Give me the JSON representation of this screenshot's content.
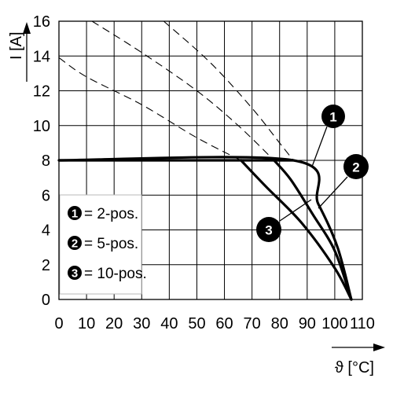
{
  "chart_data": {
    "type": "line",
    "xlabel": "ϑ [°C]",
    "ylabel": "I [A]",
    "xlim": [
      0,
      110
    ],
    "ylim": [
      0,
      16
    ],
    "x_ticks": [
      "0",
      "10",
      "20",
      "30",
      "40",
      "50",
      "60",
      "70",
      "80",
      "90",
      "100",
      "110"
    ],
    "y_ticks": [
      "0",
      "2",
      "4",
      "6",
      "8",
      "10",
      "12",
      "14",
      "16"
    ],
    "grid": true,
    "legend_position": "bottom-left",
    "series": [
      {
        "name": "2-pos.",
        "marker": "1",
        "solid": [
          [
            0,
            8
          ],
          [
            85,
            8
          ],
          [
            94,
            5.5
          ],
          [
            101,
            3
          ],
          [
            106,
            0
          ]
        ],
        "dashed": [
          [
            38,
            16
          ],
          [
            55,
            13.6
          ],
          [
            70,
            11
          ],
          [
            80,
            9
          ],
          [
            85,
            8
          ]
        ]
      },
      {
        "name": "5-pos.",
        "marker": "2",
        "solid": [
          [
            78,
            8
          ],
          [
            84,
            6.9
          ],
          [
            92,
            4.9
          ],
          [
            100,
            2.8
          ],
          [
            106,
            0
          ]
        ],
        "dashed": [
          [
            12,
            16
          ],
          [
            30,
            14.2
          ],
          [
            50,
            12
          ],
          [
            65,
            10
          ],
          [
            78,
            8
          ]
        ]
      },
      {
        "name": "10-pos.",
        "marker": "3",
        "solid": [
          [
            66,
            8
          ],
          [
            75,
            6.5
          ],
          [
            88,
            4.4
          ],
          [
            100,
            1.8
          ],
          [
            106,
            0
          ]
        ],
        "dashed": [
          [
            0,
            13.9
          ],
          [
            10,
            12.8
          ],
          [
            30,
            11.2
          ],
          [
            50,
            9.3
          ],
          [
            66,
            8
          ]
        ]
      }
    ],
    "legend": [
      {
        "marker": "1",
        "text": "= 2-pos."
      },
      {
        "marker": "2",
        "text": "= 5-pos."
      },
      {
        "marker": "3",
        "text": "= 10-pos."
      }
    ]
  }
}
